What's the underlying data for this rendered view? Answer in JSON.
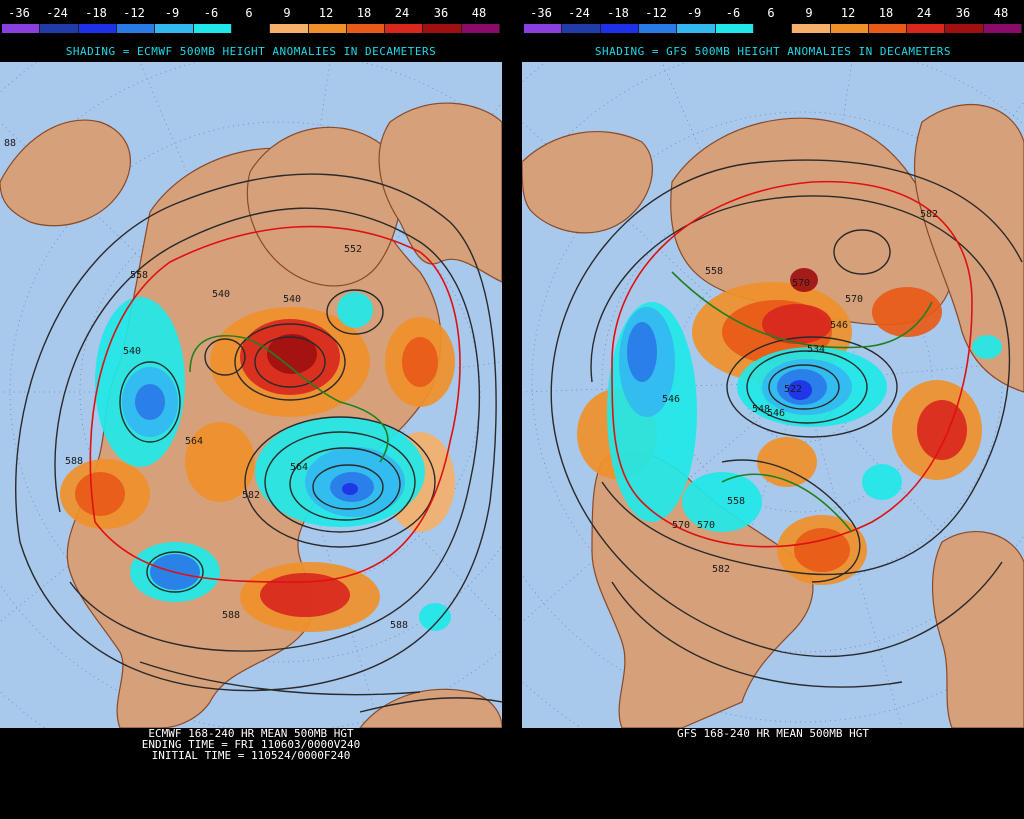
{
  "scale": {
    "labels": [
      "-36",
      "-24",
      "-18",
      "-12",
      "-9",
      "-6",
      "6",
      "9",
      "12",
      "18",
      "24",
      "36",
      "48"
    ],
    "colors": [
      "#8a3fe0",
      "#1f3ca8",
      "#1e30e8",
      "#2a7ae8",
      "#34b8f0",
      "#20e8e8",
      "#000000",
      "#f5b06a",
      "#f0902a",
      "#e85a18",
      "#d8281e",
      "#a01010",
      "#8a0b6a"
    ]
  },
  "colors": {
    "ocean": "#a8c8ec",
    "land": "#d6a07a",
    "border": "#8a4a28",
    "contour": "#2a2a2a",
    "contour_red": "#e01010",
    "contour_green": "#208020"
  },
  "left": {
    "subtitle": "SHADING = ECMWF 500MB HEIGHT ANOMALIES IN DECAMETERS",
    "caption": [
      "ECMWF 168-240 HR MEAN 500MB HGT",
      "ENDING TIME = FRI 110603/0000V240",
      "INITIAL TIME = 110524/0000F240"
    ],
    "contour_labels": [
      "88",
      "540",
      "540",
      "552",
      "540",
      "588",
      "558",
      "582",
      "588",
      "588",
      "564",
      "564"
    ]
  },
  "right": {
    "subtitle": "SHADING = GFS 500MB HEIGHT ANOMALIES IN DECAMETERS",
    "caption": [
      "GFS 168-240 HR MEAN 500MB HGT"
    ],
    "contour_labels": [
      "558",
      "570",
      "570",
      "546",
      "534",
      "522",
      "546",
      "570",
      "582",
      "582",
      "548",
      "558",
      "570",
      "546"
    ]
  }
}
